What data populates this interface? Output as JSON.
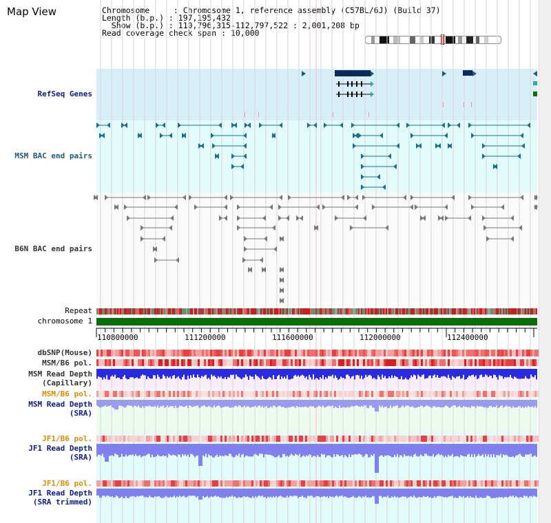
{
  "page": {
    "title": "Map View"
  },
  "info": {
    "chromosome_label": "Chromosome     : ",
    "chromosome_value": "Chromosome 1, reference assembly (C57BL/6J) (Build 37)",
    "length_label": "Length (b.p.) : ",
    "length_value": "197,195,432",
    "show_label": "  Show (b.p.) : ",
    "show_value": "110,796,315-112,797,522 : 2,001,208 bp",
    "read_label": "Read coverage check span : ",
    "read_value": "10,000"
  },
  "tracks": {
    "refseq": "RefSeq Genes",
    "msm_bac": "MSM BAC end pairs",
    "b6n_bac": "B6N BAC end pairs",
    "repeat": "Repeat",
    "chromosome": "chromosome 1",
    "dbsnp": "dbSNP(Mouse)",
    "msm_b6_pol": "MSM/B6 pol.",
    "msm_depth_cap_1": "MSM Read Depth",
    "msm_depth_cap_2": "(Capillary)",
    "msm_b6_pol_2": "MSM/B6 pol.",
    "msm_depth_sra_1": "MSM Read Depth",
    "msm_depth_sra_2": "(SRA)",
    "jf1_b6_pol": "JF1/B6 pol.",
    "jf1_depth_sra_1": "JF1 Read Depth",
    "jf1_depth_sra_2": "(SRA)",
    "jf1_b6_pol_2": "JF1/B6 pol.",
    "jf1_depth_trim_1": "JF1 Read Depth",
    "jf1_depth_trim_2": "(SRA trimmed)"
  },
  "axis": {
    "ticks": [
      "110800000",
      "111200000",
      "111600000",
      "112000000",
      "112400000"
    ]
  },
  "colors": {
    "refseq_bg": "#d8effa",
    "bac_bg": "#e2fbfb",
    "chromosome_bar": "#0a6e0a",
    "snp": "#f07070",
    "depth_blue": "#2a2ae0",
    "depth_light": "#9a9af0",
    "cyan_bg": "#e2fbfb",
    "green_bg": "#effaef",
    "pink_bg": "#f7eefa"
  }
}
